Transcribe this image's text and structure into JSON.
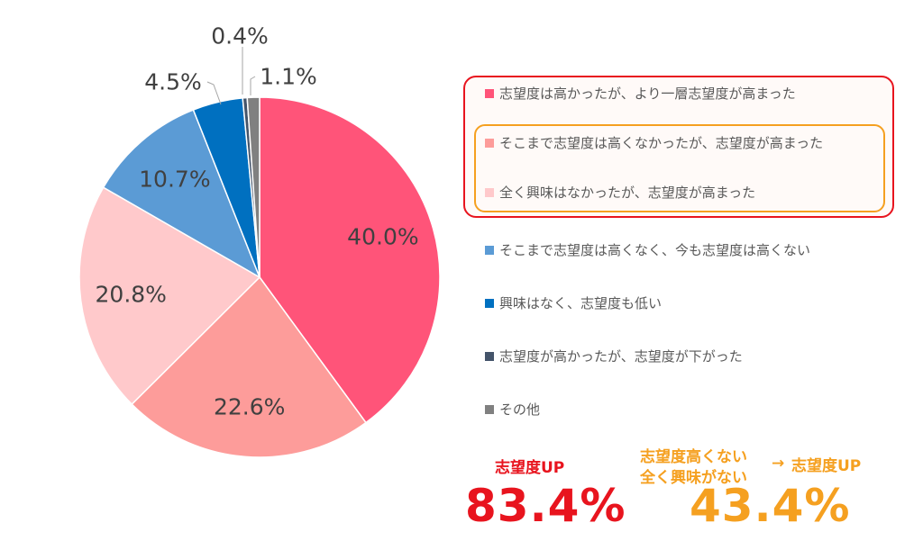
{
  "chart_data": {
    "type": "pie",
    "slices": [
      {
        "label": "志望度は高かったが、より一層志望度が高まった",
        "value": 40.0,
        "display": "40.0%",
        "color": "#ff5479"
      },
      {
        "label": "そこまで志望度は高くなかったが、志望度が高まった",
        "value": 22.6,
        "display": "22.6%",
        "color": "#fd9c9a"
      },
      {
        "label": "全く興味はなかったが、志望度が高まった",
        "value": 20.8,
        "display": "20.8%",
        "color": "#ffc9cb"
      },
      {
        "label": "そこまで志望度は高くなく、今も志望度は高くない",
        "value": 10.7,
        "display": "10.7%",
        "color": "#5b9bd5"
      },
      {
        "label": "興味はなく、志望度も低い",
        "value": 4.5,
        "display": "4.5%",
        "color": "#0070c0"
      },
      {
        "label": "志望度が高かったが、志望度が下がった",
        "value": 0.4,
        "display": "0.4%",
        "color": "#44546a"
      },
      {
        "label": "その他",
        "value": 1.1,
        "display": "1.1%",
        "color": "#808080"
      }
    ],
    "legend_position": "right"
  },
  "summary": {
    "up_label": "志望度UP",
    "up_value": "83.4%",
    "sub_label_line1": "志望度高くない",
    "sub_label_line2": "全く興味がない",
    "arrow": "→",
    "sub_result": "志望度UP",
    "sub_value": "43.4%"
  },
  "colors": {
    "highlight_red": "#e8141e",
    "highlight_orange": "#f5a020"
  }
}
